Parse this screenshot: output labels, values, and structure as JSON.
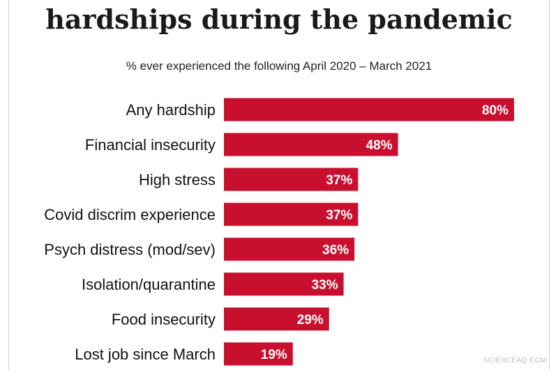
{
  "header": {
    "title_line2": "hardships during the pandemic",
    "subtitle": "% ever experienced the following April 2020 – March 2021"
  },
  "watermark": "SCIENCEAQ.COM",
  "colors": {
    "bar": "#c8102e",
    "text": "#111111",
    "background": "#ffffff"
  },
  "chart_data": {
    "type": "bar",
    "orientation": "horizontal",
    "title": "hardships during the pandemic",
    "subtitle": "% ever experienced the following April 2020 – March 2021",
    "categories": [
      "Any hardship",
      "Financial insecurity",
      "High stress",
      "Covid discrim experience",
      "Psych distress (mod/sev)",
      "Isolation/quarantine",
      "Food insecurity",
      "Lost job since March"
    ],
    "values": [
      80,
      48,
      37,
      37,
      36,
      33,
      29,
      19
    ],
    "value_labels": [
      "80%",
      "48%",
      "37%",
      "37%",
      "36%",
      "33%",
      "29%",
      "19%"
    ],
    "unit": "%",
    "xlim": [
      0,
      100
    ],
    "grid": false,
    "legend": "none"
  }
}
